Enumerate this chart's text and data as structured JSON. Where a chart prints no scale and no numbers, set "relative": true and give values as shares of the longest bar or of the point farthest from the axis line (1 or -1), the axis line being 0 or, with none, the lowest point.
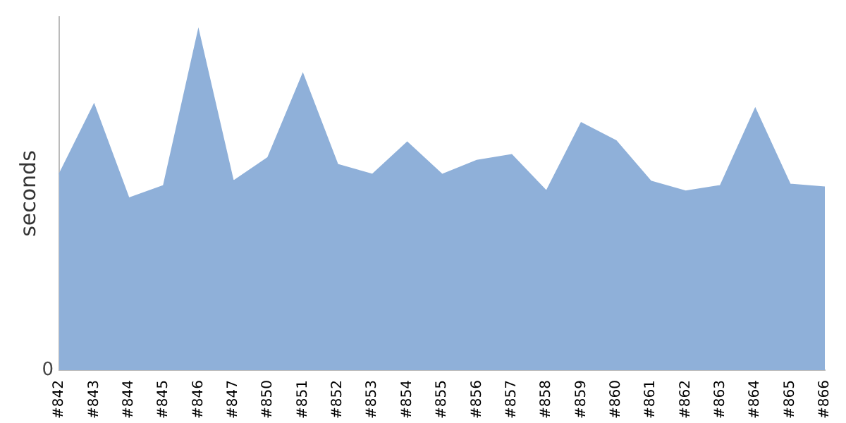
{
  "chart_data": {
    "type": "area",
    "ylabel": "seconds",
    "relative": true,
    "color": "#8fb0d9",
    "annotations": [
      "0"
    ],
    "categories": [
      "#842",
      "#843",
      "#844",
      "#845",
      "#846",
      "#847",
      "#850",
      "#851",
      "#852",
      "#853",
      "#854",
      "#855",
      "#856",
      "#857",
      "#858",
      "#859",
      "#860",
      "#861",
      "#862",
      "#863",
      "#864",
      "#865",
      "#866"
    ],
    "values": [
      0.576,
      0.782,
      0.506,
      0.543,
      1,
      0.556,
      0.626,
      0.872,
      0.605,
      0.576,
      0.671,
      0.576,
      0.617,
      0.634,
      0.527,
      0.728,
      0.675,
      0.556,
      0.527,
      0.543,
      0.77,
      0.547,
      0.539
    ]
  }
}
